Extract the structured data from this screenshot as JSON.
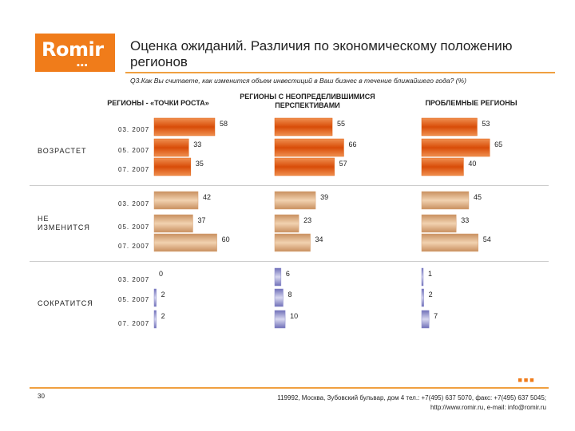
{
  "logo": {
    "text": "Romir",
    "dots": "▪▪▪"
  },
  "header": {
    "title": "Оценка ожиданий. Различия по экономическому положению регионов",
    "question": "Q3.Как Вы считаете, как изменится объем инвестиций в Ваш бизнес в течение ближайшего года? (%)"
  },
  "colors": {
    "brand": "#f07c1a",
    "increase": "#e06010",
    "nochange": "#d8a070",
    "decrease": "#8888cc"
  },
  "chart_data": {
    "type": "bar",
    "orientation": "horizontal",
    "panels": [
      "РЕГИОНЫ - «ТОЧКИ РОСТА»",
      "РЕГИОНЫ С НЕОПРЕДЕЛИВШИМИСЯ ПЕРСПЕКТИВАМИ",
      "ПРОБЛЕМНЫЕ РЕГИОНЫ"
    ],
    "groups": [
      {
        "label": "ВОЗРАСТЕТ",
        "series": [
          {
            "date": "03. 2007",
            "values": [
              58,
              55,
              53
            ]
          },
          {
            "date": "05. 2007",
            "values": [
              33,
              66,
              65
            ]
          },
          {
            "date": "07. 2007",
            "values": [
              35,
              57,
              40
            ]
          }
        ]
      },
      {
        "label": "НЕ ИЗМЕНИТСЯ",
        "series": [
          {
            "date": "03. 2007",
            "values": [
              42,
              39,
              45
            ]
          },
          {
            "date": "05. 2007",
            "values": [
              37,
              23,
              33
            ]
          },
          {
            "date": "07. 2007",
            "values": [
              60,
              34,
              54
            ]
          }
        ]
      },
      {
        "label": "СОКРАТИТСЯ",
        "series": [
          {
            "date": "03. 2007",
            "values": [
              0,
              6,
              1
            ]
          },
          {
            "date": "05. 2007",
            "values": [
              2,
              8,
              2
            ]
          },
          {
            "date": "07. 2007",
            "values": [
              2,
              10,
              7
            ]
          }
        ]
      }
    ]
  },
  "footer": {
    "page": "30",
    "address": "119992, Москва, Зубовский бульвар, дом 4   тел.: +7(495) 637 5070, факс: +7(495) 637 5045;",
    "web": "http://www.romir.ru, e-mail: info@romir.ru",
    "dots": "▪▪▪"
  }
}
